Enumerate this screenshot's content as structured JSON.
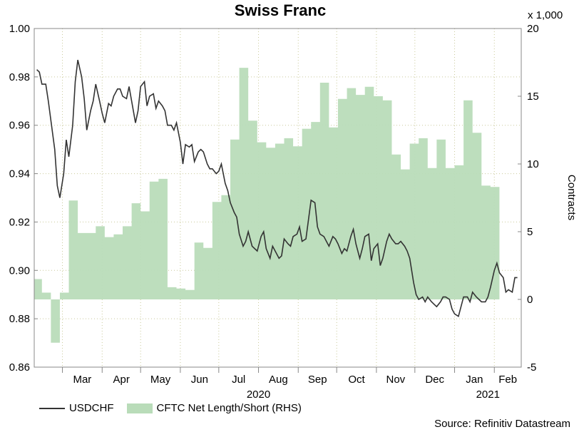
{
  "chart_data": {
    "type": "line",
    "title": "Swiss Franc",
    "left_axis": {
      "ylim": [
        0.86,
        1.0
      ],
      "ticks": [
        "0.86",
        "0.88",
        "0.90",
        "0.92",
        "0.94",
        "0.96",
        "0.98",
        "1.00"
      ]
    },
    "right_axis": {
      "label": "Contracts",
      "multiplier_label": "x 1,000",
      "ylim": [
        -5,
        20
      ],
      "ticks": [
        "-5",
        "0",
        "5",
        "10",
        "15",
        "20"
      ]
    },
    "x_axis": {
      "months": [
        "Mar",
        "Apr",
        "May",
        "Jun",
        "Jul",
        "Aug",
        "Sep",
        "Oct",
        "Nov",
        "Dec",
        "Jan",
        "Feb"
      ],
      "years": [
        {
          "label": "2020"
        },
        {
          "label": "2021"
        }
      ]
    },
    "grid": true,
    "colors": {
      "usdchf": "#333333",
      "cftc": "#b9dcb9"
    },
    "series": [
      {
        "name": "USDCHF",
        "axis": "left",
        "x": [
          "2020-02-10",
          "2020-02-12",
          "2020-02-14",
          "2020-02-17",
          "2020-02-19",
          "2020-02-21",
          "2020-02-24",
          "2020-02-26",
          "2020-02-28",
          "2020-03-02",
          "2020-03-04",
          "2020-03-06",
          "2020-03-09",
          "2020-03-11",
          "2020-03-13",
          "2020-03-16",
          "2020-03-18",
          "2020-03-20",
          "2020-03-23",
          "2020-03-25",
          "2020-03-27",
          "2020-03-30",
          "2020-04-01",
          "2020-04-03",
          "2020-04-06",
          "2020-04-08",
          "2020-04-10",
          "2020-04-13",
          "2020-04-15",
          "2020-04-17",
          "2020-04-20",
          "2020-04-22",
          "2020-04-24",
          "2020-04-27",
          "2020-04-29",
          "2020-05-01",
          "2020-05-04",
          "2020-05-06",
          "2020-05-08",
          "2020-05-11",
          "2020-05-13",
          "2020-05-15",
          "2020-05-18",
          "2020-05-20",
          "2020-05-22",
          "2020-05-25",
          "2020-05-27",
          "2020-05-29",
          "2020-06-01",
          "2020-06-03",
          "2020-06-05",
          "2020-06-08",
          "2020-06-10",
          "2020-06-12",
          "2020-06-15",
          "2020-06-17",
          "2020-06-19",
          "2020-06-22",
          "2020-06-24",
          "2020-06-26",
          "2020-06-29",
          "2020-07-01",
          "2020-07-03",
          "2020-07-06",
          "2020-07-08",
          "2020-07-10",
          "2020-07-13",
          "2020-07-15",
          "2020-07-17",
          "2020-07-20",
          "2020-07-22",
          "2020-07-24",
          "2020-07-27",
          "2020-07-29",
          "2020-07-31",
          "2020-08-03",
          "2020-08-05",
          "2020-08-07",
          "2020-08-10",
          "2020-08-12",
          "2020-08-14",
          "2020-08-17",
          "2020-08-19",
          "2020-08-21",
          "2020-08-24",
          "2020-08-26",
          "2020-08-28",
          "2020-08-31",
          "2020-09-02",
          "2020-09-04",
          "2020-09-07",
          "2020-09-09",
          "2020-09-11",
          "2020-09-14",
          "2020-09-16",
          "2020-09-18",
          "2020-09-21",
          "2020-09-23",
          "2020-09-25",
          "2020-09-28",
          "2020-09-30",
          "2020-10-02",
          "2020-10-05",
          "2020-10-07",
          "2020-10-09",
          "2020-10-12",
          "2020-10-14",
          "2020-10-16",
          "2020-10-19",
          "2020-10-21",
          "2020-10-23",
          "2020-10-26",
          "2020-10-28",
          "2020-10-30",
          "2020-11-02",
          "2020-11-04",
          "2020-11-06",
          "2020-11-09",
          "2020-11-11",
          "2020-11-13",
          "2020-11-16",
          "2020-11-18",
          "2020-11-20",
          "2020-11-23",
          "2020-11-25",
          "2020-11-27",
          "2020-11-30",
          "2020-12-02",
          "2020-12-04",
          "2020-12-07",
          "2020-12-09",
          "2020-12-11",
          "2020-12-14",
          "2020-12-16",
          "2020-12-18",
          "2020-12-21",
          "2020-12-23",
          "2020-12-25",
          "2020-12-28",
          "2020-12-30",
          "2021-01-01",
          "2021-01-04",
          "2021-01-06",
          "2021-01-08",
          "2021-01-11",
          "2021-01-13",
          "2021-01-15",
          "2021-01-18",
          "2021-01-20",
          "2021-01-22",
          "2021-01-25",
          "2021-01-27",
          "2021-01-29",
          "2021-02-01",
          "2021-02-03",
          "2021-02-05",
          "2021-02-08",
          "2021-02-10",
          "2021-02-12",
          "2021-02-15",
          "2021-02-17",
          "2021-02-19"
        ],
        "values": [
          0.983,
          0.982,
          0.977,
          0.977,
          0.97,
          0.962,
          0.95,
          0.935,
          0.93,
          0.94,
          0.954,
          0.947,
          0.96,
          0.978,
          0.987,
          0.98,
          0.971,
          0.958,
          0.966,
          0.97,
          0.977,
          0.97,
          0.965,
          0.961,
          0.969,
          0.968,
          0.972,
          0.975,
          0.975,
          0.972,
          0.971,
          0.976,
          0.97,
          0.961,
          0.966,
          0.976,
          0.978,
          0.968,
          0.972,
          0.973,
          0.967,
          0.97,
          0.968,
          0.966,
          0.96,
          0.96,
          0.958,
          0.961,
          0.953,
          0.944,
          0.952,
          0.951,
          0.952,
          0.945,
          0.949,
          0.95,
          0.949,
          0.944,
          0.942,
          0.942,
          0.94,
          0.941,
          0.944,
          0.936,
          0.933,
          0.928,
          0.924,
          0.922,
          0.915,
          0.91,
          0.912,
          0.916,
          0.91,
          0.909,
          0.908,
          0.914,
          0.916,
          0.909,
          0.905,
          0.91,
          0.908,
          0.905,
          0.906,
          0.913,
          0.911,
          0.91,
          0.914,
          0.915,
          0.918,
          0.912,
          0.913,
          0.921,
          0.929,
          0.928,
          0.918,
          0.915,
          0.914,
          0.912,
          0.91,
          0.914,
          0.913,
          0.911,
          0.907,
          0.909,
          0.908,
          0.914,
          0.917,
          0.911,
          0.905,
          0.909,
          0.914,
          0.915,
          0.904,
          0.909,
          0.911,
          0.902,
          0.905,
          0.912,
          0.915,
          0.913,
          0.911,
          0.911,
          0.912,
          0.91,
          0.908,
          0.905,
          0.895,
          0.89,
          0.888,
          0.889,
          0.887,
          0.889,
          0.887,
          0.886,
          0.885,
          0.887,
          0.889,
          0.889,
          0.888,
          0.884,
          0.882,
          0.881,
          0.885,
          0.889,
          0.889,
          0.887,
          0.891,
          0.889,
          0.888,
          0.887,
          0.887,
          0.889,
          0.893,
          0.9,
          0.903,
          0.899,
          0.897,
          0.891,
          0.892,
          0.891,
          0.897,
          0.897
        ]
      },
      {
        "name": "CFTC Net Length/Short (RHS)",
        "axis": "right",
        "type": "area",
        "x": [
          "2020-02-07",
          "2020-02-14",
          "2020-02-21",
          "2020-02-28",
          "2020-03-06",
          "2020-03-13",
          "2020-03-20",
          "2020-03-27",
          "2020-04-03",
          "2020-04-10",
          "2020-04-17",
          "2020-04-24",
          "2020-05-01",
          "2020-05-08",
          "2020-05-15",
          "2020-05-22",
          "2020-05-29",
          "2020-06-05",
          "2020-06-12",
          "2020-06-19",
          "2020-06-26",
          "2020-07-03",
          "2020-07-10",
          "2020-07-17",
          "2020-07-24",
          "2020-07-31",
          "2020-08-07",
          "2020-08-14",
          "2020-08-21",
          "2020-08-28",
          "2020-09-04",
          "2020-09-11",
          "2020-09-18",
          "2020-09-25",
          "2020-10-02",
          "2020-10-09",
          "2020-10-16",
          "2020-10-23",
          "2020-10-30",
          "2020-11-06",
          "2020-11-13",
          "2020-11-20",
          "2020-11-27",
          "2020-12-04",
          "2020-12-11",
          "2020-12-18",
          "2020-12-25",
          "2021-01-01",
          "2021-01-08",
          "2021-01-15",
          "2021-01-22",
          "2021-01-29",
          "2021-02-05",
          "2021-02-12",
          "2021-02-19"
        ],
        "values": [
          1.5,
          0.5,
          -3.2,
          0.5,
          7.3,
          4.9,
          4.9,
          5.4,
          4.6,
          4.8,
          5.4,
          7.1,
          6.5,
          8.7,
          8.9,
          0.9,
          0.8,
          0.7,
          4.2,
          3.8,
          7.2,
          7.7,
          11.8,
          17.1,
          13.2,
          11.6,
          11.2,
          11.5,
          11.9,
          11.3,
          12.6,
          13.1,
          16.0,
          12.7,
          14.8,
          15.6,
          15.1,
          15.7,
          15.0,
          14.7,
          10.7,
          9.6,
          11.5,
          11.9,
          9.7,
          11.8,
          9.7,
          9.9,
          14.7,
          12.3,
          8.4,
          8.3,
          0,
          0,
          0
        ]
      }
    ]
  },
  "source_text": "Source: Refinitiv Datastream"
}
